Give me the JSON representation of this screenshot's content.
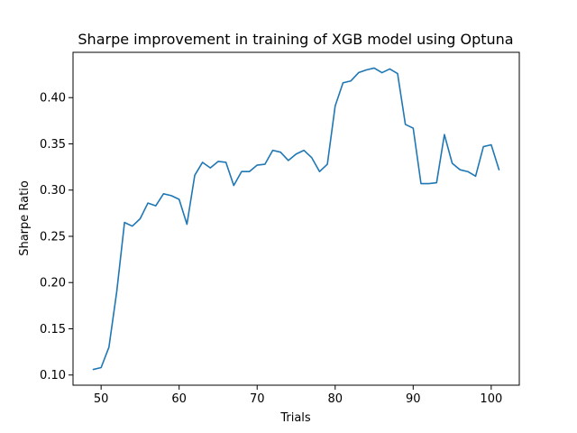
{
  "chart_data": {
    "type": "line",
    "title": "Sharpe improvement in training of XGB model using Optuna",
    "xlabel": "Trials",
    "ylabel": "Sharpe Ratio",
    "xlim": [
      46.4,
      103.6
    ],
    "ylim": [
      0.089,
      0.449
    ],
    "xticks": [
      50,
      60,
      70,
      80,
      90,
      100
    ],
    "yticks": [
      0.1,
      0.15,
      0.2,
      0.25,
      0.3,
      0.35,
      0.4
    ],
    "grid": false,
    "series": [
      {
        "color": "#1f77b4",
        "x": [
          49,
          50,
          51,
          52,
          53,
          54,
          55,
          56,
          57,
          58,
          59,
          60,
          61,
          62,
          63,
          64,
          65,
          66,
          67,
          68,
          69,
          70,
          71,
          72,
          73,
          74,
          75,
          76,
          77,
          78,
          79,
          80,
          81,
          82,
          83,
          84,
          85,
          86,
          87,
          88,
          89,
          90,
          91,
          92,
          93,
          94,
          95,
          96,
          97,
          98,
          99,
          100,
          101
        ],
        "y": [
          0.106,
          0.108,
          0.13,
          0.19,
          0.265,
          0.261,
          0.269,
          0.286,
          0.283,
          0.296,
          0.294,
          0.29,
          0.263,
          0.316,
          0.33,
          0.324,
          0.331,
          0.33,
          0.305,
          0.32,
          0.32,
          0.327,
          0.328,
          0.343,
          0.341,
          0.332,
          0.339,
          0.343,
          0.335,
          0.32,
          0.328,
          0.391,
          0.416,
          0.418,
          0.427,
          0.43,
          0.432,
          0.427,
          0.431,
          0.426,
          0.371,
          0.367,
          0.307,
          0.307,
          0.308,
          0.36,
          0.329,
          0.322,
          0.32,
          0.315,
          0.347,
          0.349,
          0.322
        ]
      }
    ]
  }
}
